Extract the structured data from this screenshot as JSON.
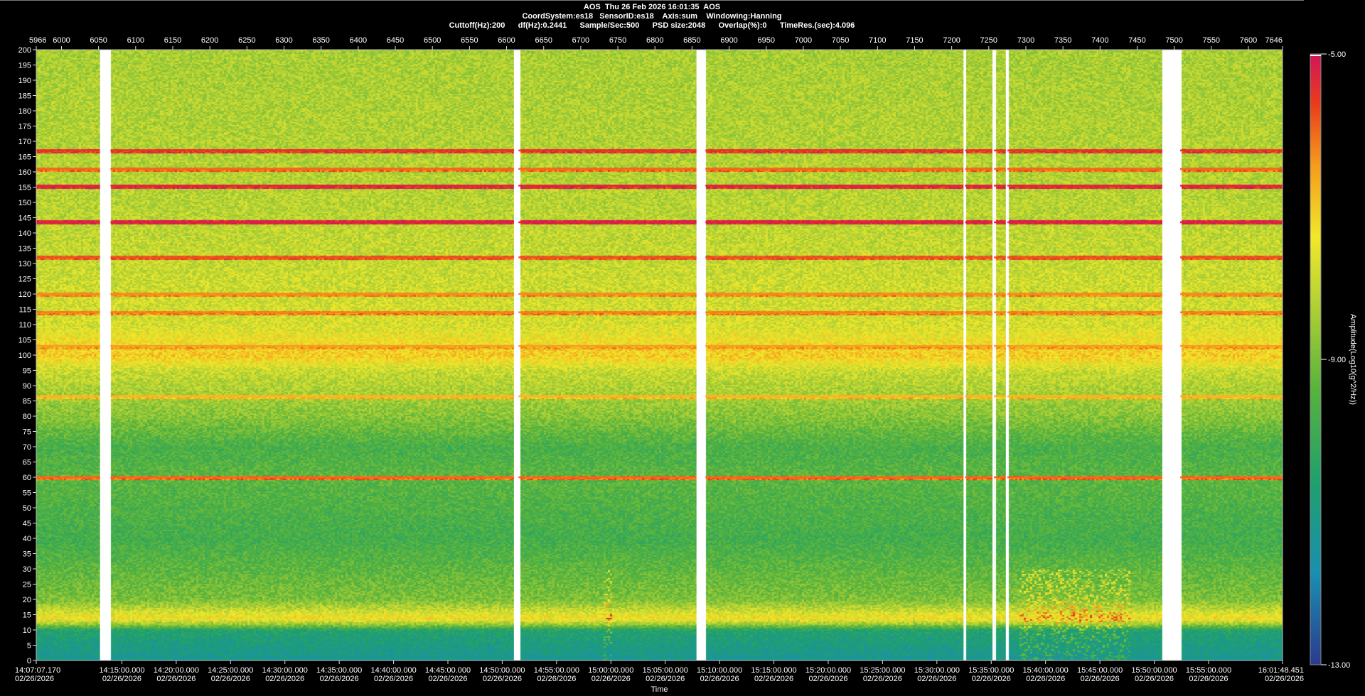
{
  "header": {
    "title_left": "AOS",
    "title_date": "Thu 26 Feb 2026 16:01:35",
    "title_right": "AOS",
    "coord_system": "CoordSystem:es18",
    "sensor_id": "SensorID:es18",
    "axis": "Axis:sum",
    "windowing": "Windowing:Hanning",
    "cutoff": "Cuttoff(Hz):200",
    "df": "df(Hz):0.2441",
    "sample_rate": "Sample/Sec:500",
    "psd_size": "PSD size:2048",
    "overlap": "Overlap(%):0",
    "time_res": "TimeRes.(sec):4.096"
  },
  "chart_data": {
    "type": "heatmap",
    "title": "",
    "xlabel": "Time",
    "ylabel": "",
    "colorbar_label": "Amplitude(Log10(g^2/Hz))",
    "colorbar_ticks": [
      "-5.00",
      "-9.00",
      "-13.00"
    ],
    "colorbar_range": [
      -13,
      -5
    ],
    "ylim": [
      0,
      200
    ],
    "y_ticks": [
      200,
      195,
      190,
      185,
      180,
      175,
      170,
      165,
      160,
      155,
      150,
      145,
      140,
      135,
      130,
      125,
      120,
      115,
      110,
      105,
      100,
      95,
      90,
      85,
      80,
      75,
      70,
      65,
      60,
      55,
      50,
      45,
      40,
      35,
      30,
      25,
      20,
      15,
      10,
      5,
      0
    ],
    "top_axis_range": [
      5966,
      7646
    ],
    "top_ticks": [
      "5966",
      "6000",
      "6050",
      "6100",
      "6150",
      "6200",
      "6250",
      "6300",
      "6350",
      "6400",
      "6450",
      "6500",
      "6550",
      "6600",
      "6650",
      "6700",
      "6750",
      "6800",
      "6850",
      "6900",
      "6950",
      "7000",
      "7050",
      "7100",
      "7150",
      "7200",
      "7250",
      "7300",
      "7350",
      "7400",
      "7450",
      "7500",
      "7550",
      "7600",
      "7646"
    ],
    "time_ticks": [
      "14:07:07.170",
      "14:15:00.000",
      "14:20:00.000",
      "14:25:00.000",
      "14:30:00.000",
      "14:35:00.000",
      "14:40:00.000",
      "14:45:00.000",
      "14:50:00.000",
      "14:55:00.000",
      "15:00:00.000",
      "15:05:00.000",
      "15:10:00.000",
      "15:15:00.000",
      "15:20:00.000",
      "15:25:00.000",
      "15:30:00.000",
      "15:35:00.000",
      "15:40:00.000",
      "15:45:00.000",
      "15:50:00.000",
      "15:55:00.000",
      "16:01:48.451"
    ],
    "date_label": "02/26/2026",
    "data_gaps_top_axis": [
      [
        6052,
        6066
      ],
      [
        6610,
        6616
      ],
      [
        6856,
        6868
      ],
      [
        7216,
        7218
      ],
      [
        7255,
        7257
      ],
      [
        7273,
        7275
      ],
      [
        7484,
        7508
      ]
    ],
    "persistent_lines_hz": [
      {
        "hz": 167,
        "level": -5.5
      },
      {
        "hz": 161,
        "level": -6.0
      },
      {
        "hz": 155.5,
        "level": -5.3
      },
      {
        "hz": 143.5,
        "level": -5.2
      },
      {
        "hz": 132,
        "level": -5.8
      },
      {
        "hz": 120,
        "level": -6.3
      },
      {
        "hz": 114,
        "level": -6.2
      },
      {
        "hz": 103,
        "level": -6.5
      },
      {
        "hz": 86.5,
        "level": -6.8
      },
      {
        "hz": 60,
        "level": -6.0
      }
    ],
    "noise_profile_hz": [
      {
        "hz": 200,
        "level": -8.4
      },
      {
        "hz": 150,
        "level": -8.2
      },
      {
        "hz": 110,
        "level": -7.8
      },
      {
        "hz": 100,
        "level": -7.0
      },
      {
        "hz": 95,
        "level": -8.0
      },
      {
        "hz": 80,
        "level": -8.8
      },
      {
        "hz": 70,
        "level": -9.7
      },
      {
        "hz": 60,
        "level": -9.4
      },
      {
        "hz": 40,
        "level": -9.8
      },
      {
        "hz": 20,
        "level": -8.9
      },
      {
        "hz": 14,
        "level": -7.3
      },
      {
        "hz": 12,
        "level": -8.6
      },
      {
        "hz": 10,
        "level": -10.6
      },
      {
        "hz": 0,
        "level": -11.3
      }
    ],
    "transient_events_top_axis": [
      [
        6728,
        6742,
        0,
        30
      ],
      [
        7290,
        7440,
        0,
        30
      ]
    ]
  }
}
